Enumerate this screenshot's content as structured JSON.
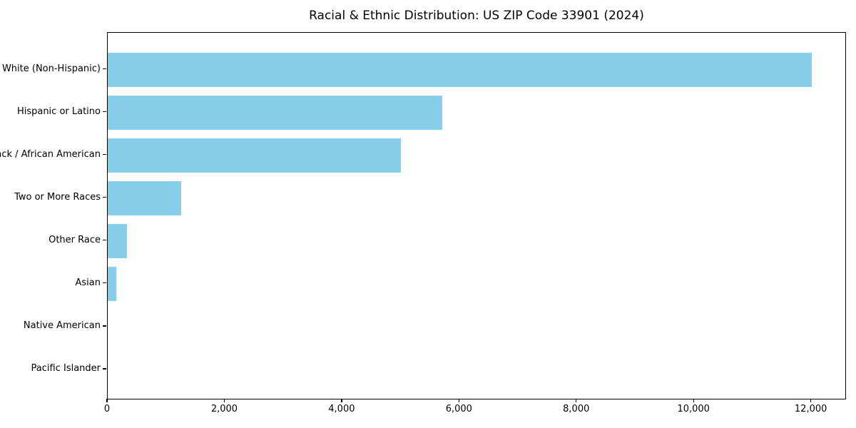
{
  "title": "Racial & Ethnic Distribution: US ZIP Code 33901 (2024)",
  "colors": {
    "bar": "#87CEEB",
    "text": "#000000",
    "spine": "#000000",
    "background": "#ffffff"
  },
  "chart_data": {
    "type": "bar",
    "orientation": "horizontal",
    "title": "Racial & Ethnic Distribution: US ZIP Code 33901 (2024)",
    "xlabel": "",
    "ylabel": "",
    "categories": [
      "White (Non-Hispanic)",
      "Hispanic or Latino",
      "Black / African American",
      "Two or More Races",
      "Other Race",
      "Asian",
      "Native American",
      "Pacific Islander"
    ],
    "values": [
      12000,
      5700,
      5000,
      1250,
      325,
      150,
      0,
      0
    ],
    "bar_color": "#87CEEB",
    "xlim": [
      0,
      12600
    ],
    "x_ticks": [
      0,
      2000,
      4000,
      6000,
      8000,
      10000,
      12000
    ],
    "x_tick_labels": [
      "0",
      "2,000",
      "4,000",
      "6,000",
      "8,000",
      "10,000",
      "12,000"
    ],
    "grid": false,
    "legend": "none"
  }
}
